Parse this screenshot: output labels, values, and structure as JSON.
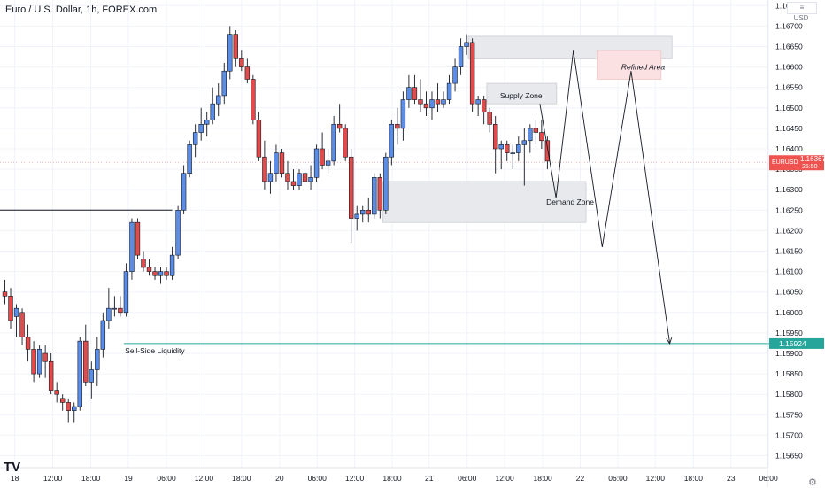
{
  "header": {
    "title": "Euro / U.S. Dollar, 1h, FOREX.com",
    "currency": "USD",
    "currency_menu": "≡"
  },
  "brand": {
    "logo": "TV"
  },
  "colors": {
    "up": "#5b8de6",
    "down": "#e24b4b",
    "wick": "#131722",
    "zone_gray": "#e8e9ec",
    "refined_fill": "#fbe1e1",
    "liquidity": "#26a69a",
    "price_line": "#e8b4b4"
  },
  "chart_data": {
    "type": "candlestick",
    "symbol": "EURUSD",
    "timeframe": "1h",
    "ylim": [
      1.1562,
      1.168
    ],
    "y_ticks": [
      1.1565,
      1.157,
      1.1575,
      1.158,
      1.1585,
      1.159,
      1.1595,
      1.16,
      1.1605,
      1.161,
      1.1615,
      1.162,
      1.1625,
      1.163,
      1.1635,
      1.164,
      1.1645,
      1.165,
      1.1655,
      1.166,
      1.1665,
      1.167,
      1.1675
    ],
    "x_ticks": [
      {
        "label": "18",
        "bar": 1.7
      },
      {
        "label": "12:00",
        "bar": 8.3
      },
      {
        "label": "18:00",
        "bar": 14.9
      },
      {
        "label": "19",
        "bar": 21.4
      },
      {
        "label": "06:00",
        "bar": 28.0
      },
      {
        "label": "12:00",
        "bar": 34.5
      },
      {
        "label": "18:00",
        "bar": 41.0
      },
      {
        "label": "20",
        "bar": 47.6
      },
      {
        "label": "06:00",
        "bar": 54.1
      },
      {
        "label": "12:00",
        "bar": 60.6
      },
      {
        "label": "18:00",
        "bar": 67.1
      },
      {
        "label": "21",
        "bar": 73.5
      },
      {
        "label": "06:00",
        "bar": 80.1
      },
      {
        "label": "12:00",
        "bar": 86.6
      },
      {
        "label": "18:00",
        "bar": 93.2
      },
      {
        "label": "22",
        "bar": 99.7
      },
      {
        "label": "06:00",
        "bar": 106.2
      },
      {
        "label": "12:00",
        "bar": 112.7
      },
      {
        "label": "18:00",
        "bar": 119.3
      },
      {
        "label": "23",
        "bar": 125.8
      },
      {
        "label": "06:00",
        "bar": 132.3
      }
    ],
    "ohlc": [
      [
        1.1605,
        1.1608,
        1.1602,
        1.1604
      ],
      [
        1.1604,
        1.1606,
        1.1596,
        1.1598
      ],
      [
        1.1599,
        1.1602,
        1.1594,
        1.1601
      ],
      [
        1.16,
        1.1601,
        1.1592,
        1.1594
      ],
      [
        1.1594,
        1.1597,
        1.1588,
        1.1591
      ],
      [
        1.1591,
        1.1593,
        1.1583,
        1.1585
      ],
      [
        1.1585,
        1.1592,
        1.1584,
        1.1591
      ],
      [
        1.159,
        1.1592,
        1.1584,
        1.1588
      ],
      [
        1.1588,
        1.159,
        1.158,
        1.1581
      ],
      [
        1.1581,
        1.1583,
        1.1578,
        1.158
      ],
      [
        1.1579,
        1.158,
        1.1576,
        1.1578
      ],
      [
        1.1578,
        1.1579,
        1.1573,
        1.1576
      ],
      [
        1.1576,
        1.1578,
        1.1573,
        1.1577
      ],
      [
        1.1577,
        1.1594,
        1.1576,
        1.1593
      ],
      [
        1.1593,
        1.1597,
        1.1582,
        1.1583
      ],
      [
        1.1583,
        1.1588,
        1.1579,
        1.1586
      ],
      [
        1.1586,
        1.1594,
        1.1582,
        1.1591
      ],
      [
        1.1591,
        1.16,
        1.1589,
        1.1598
      ],
      [
        1.1598,
        1.1606,
        1.1596,
        1.1601
      ],
      [
        1.1601,
        1.1604,
        1.1599,
        1.1601
      ],
      [
        1.1601,
        1.1604,
        1.1599,
        1.16
      ],
      [
        1.16,
        1.1612,
        1.1599,
        1.161
      ],
      [
        1.161,
        1.1623,
        1.1608,
        1.1622
      ],
      [
        1.1622,
        1.1623,
        1.1613,
        1.1614
      ],
      [
        1.1613,
        1.1615,
        1.161,
        1.1611
      ],
      [
        1.1611,
        1.1613,
        1.1609,
        1.161
      ],
      [
        1.161,
        1.1611,
        1.1608,
        1.1609
      ],
      [
        1.1609,
        1.1611,
        1.1607,
        1.161
      ],
      [
        1.161,
        1.1611,
        1.1608,
        1.1609
      ],
      [
        1.1609,
        1.1616,
        1.1608,
        1.1614
      ],
      [
        1.1614,
        1.1626,
        1.1613,
        1.1625
      ],
      [
        1.1625,
        1.1636,
        1.1624,
        1.1634
      ],
      [
        1.1634,
        1.1642,
        1.1633,
        1.1641
      ],
      [
        1.1641,
        1.1646,
        1.1638,
        1.1644
      ],
      [
        1.1644,
        1.165,
        1.1642,
        1.1646
      ],
      [
        1.1646,
        1.1649,
        1.1643,
        1.1647
      ],
      [
        1.1647,
        1.1655,
        1.1646,
        1.1651
      ],
      [
        1.1651,
        1.1656,
        1.1648,
        1.1653
      ],
      [
        1.1653,
        1.1661,
        1.1651,
        1.1659
      ],
      [
        1.1659,
        1.167,
        1.1657,
        1.1668
      ],
      [
        1.1668,
        1.1669,
        1.166,
        1.1662
      ],
      [
        1.1662,
        1.1664,
        1.1659,
        1.166
      ],
      [
        1.166,
        1.1662,
        1.1656,
        1.1657
      ],
      [
        1.1657,
        1.1658,
        1.1646,
        1.1647
      ],
      [
        1.1647,
        1.1649,
        1.1637,
        1.1638
      ],
      [
        1.1638,
        1.1642,
        1.163,
        1.1632
      ],
      [
        1.1632,
        1.1637,
        1.1629,
        1.1634
      ],
      [
        1.1634,
        1.1641,
        1.1632,
        1.1639
      ],
      [
        1.1639,
        1.164,
        1.1633,
        1.1634
      ],
      [
        1.1634,
        1.1637,
        1.163,
        1.1632
      ],
      [
        1.1632,
        1.1635,
        1.163,
        1.1631
      ],
      [
        1.1631,
        1.1635,
        1.163,
        1.1634
      ],
      [
        1.1634,
        1.1638,
        1.1631,
        1.1632
      ],
      [
        1.1632,
        1.1636,
        1.163,
        1.1633
      ],
      [
        1.1633,
        1.1641,
        1.1632,
        1.164
      ],
      [
        1.164,
        1.1644,
        1.1635,
        1.1636
      ],
      [
        1.1636,
        1.164,
        1.1634,
        1.1637
      ],
      [
        1.1637,
        1.1648,
        1.1636,
        1.1646
      ],
      [
        1.1646,
        1.1651,
        1.1644,
        1.1645
      ],
      [
        1.1645,
        1.1646,
        1.1637,
        1.1638
      ],
      [
        1.1638,
        1.164,
        1.1617,
        1.1623
      ],
      [
        1.1623,
        1.1626,
        1.162,
        1.1624
      ],
      [
        1.1624,
        1.1626,
        1.1622,
        1.1625
      ],
      [
        1.1625,
        1.1628,
        1.1622,
        1.1624
      ],
      [
        1.1624,
        1.1634,
        1.1623,
        1.1633
      ],
      [
        1.1633,
        1.1634,
        1.1623,
        1.1625
      ],
      [
        1.1625,
        1.1639,
        1.1624,
        1.1638
      ],
      [
        1.1638,
        1.1647,
        1.1636,
        1.1646
      ],
      [
        1.1646,
        1.165,
        1.1641,
        1.1645
      ],
      [
        1.1645,
        1.1654,
        1.1642,
        1.1652
      ],
      [
        1.1652,
        1.1658,
        1.165,
        1.1655
      ],
      [
        1.1655,
        1.1658,
        1.1651,
        1.1652
      ],
      [
        1.1652,
        1.1657,
        1.1649,
        1.1651
      ],
      [
        1.1651,
        1.1654,
        1.1648,
        1.165
      ],
      [
        1.165,
        1.1654,
        1.1647,
        1.1652
      ],
      [
        1.1652,
        1.1656,
        1.1649,
        1.1651
      ],
      [
        1.1651,
        1.1654,
        1.165,
        1.1652
      ],
      [
        1.1652,
        1.1658,
        1.1651,
        1.1656
      ],
      [
        1.1656,
        1.1662,
        1.1654,
        1.166
      ],
      [
        1.166,
        1.1667,
        1.1658,
        1.1665
      ],
      [
        1.1665,
        1.1668,
        1.1663,
        1.1666
      ],
      [
        1.1666,
        1.1667,
        1.1649,
        1.1651
      ],
      [
        1.1651,
        1.1653,
        1.1648,
        1.1652
      ],
      [
        1.1652,
        1.1653,
        1.1646,
        1.1649
      ],
      [
        1.1649,
        1.165,
        1.1644,
        1.1646
      ],
      [
        1.1646,
        1.1648,
        1.1634,
        1.164
      ],
      [
        1.164,
        1.1642,
        1.1635,
        1.1641
      ],
      [
        1.1641,
        1.1642,
        1.1637,
        1.1639
      ],
      [
        1.1639,
        1.1641,
        1.1635,
        1.1639
      ],
      [
        1.1639,
        1.1643,
        1.1637,
        1.1641
      ],
      [
        1.1641,
        1.1645,
        1.1631,
        1.1642
      ],
      [
        1.1642,
        1.1646,
        1.1639,
        1.1645
      ],
      [
        1.1645,
        1.1647,
        1.1641,
        1.1644
      ],
      [
        1.1644,
        1.1647,
        1.164,
        1.1642
      ],
      [
        1.1642,
        1.1643,
        1.1635,
        1.1637
      ]
    ],
    "last_price": 1.16367,
    "levels": [
      {
        "price": 1.1625,
        "x0_bar": -1,
        "x1_bar": 29,
        "color": "#131722"
      },
      {
        "price": 1.15924,
        "x0_bar": 20.6,
        "x1_bar": 134.5,
        "color": "#26a69a",
        "label": "Sell-Side Liquidity"
      }
    ],
    "zones": [
      {
        "name": "supply-top",
        "bar0": 80.3,
        "bar1": 115.6,
        "y0": 1.1662,
        "y1": 1.16675,
        "fill": "#e8e9ec",
        "label": ""
      },
      {
        "name": "refined",
        "bar0": 102.6,
        "bar1": 113.7,
        "y0": 1.1657,
        "y1": 1.1664,
        "fill": "#fbe1e1",
        "label": "Refined Area"
      },
      {
        "name": "supply",
        "bar0": 83.5,
        "bar1": 95.6,
        "y0": 1.1651,
        "y1": 1.1656,
        "fill": "#e8e9ec",
        "label": "Supply Zone"
      },
      {
        "name": "demand",
        "bar0": 65.5,
        "bar1": 100.7,
        "y0": 1.1622,
        "y1": 1.1632,
        "fill": "#e8e9ec",
        "label": "Demand Zone"
      }
    ],
    "projection": [
      [
        92.7,
        1.1651
      ],
      [
        95.5,
        1.1628
      ],
      [
        98.5,
        1.1664
      ],
      [
        103.5,
        1.1616
      ],
      [
        108.5,
        1.1659
      ],
      [
        115.2,
        1.15924
      ]
    ],
    "price_label": {
      "symbol": "EURUSD",
      "price": "1.16367",
      "countdown": "25:50"
    },
    "liquidity_label": "1.15924"
  }
}
